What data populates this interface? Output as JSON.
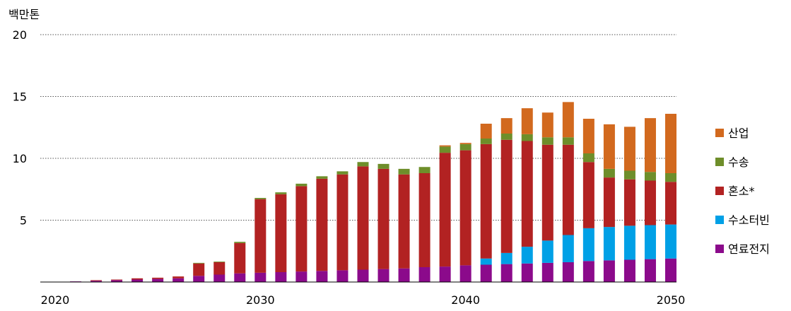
{
  "chart_data": {
    "type": "bar",
    "stacked": true,
    "unit_label": "백만톤",
    "ylim": [
      0,
      20
    ],
    "yticks": [
      5,
      10,
      15,
      20
    ],
    "xticks": [
      2020,
      2030,
      2040,
      2050
    ],
    "grid": true,
    "legend_position": "right",
    "categories": [
      2021,
      2022,
      2023,
      2024,
      2025,
      2026,
      2027,
      2028,
      2029,
      2030,
      2031,
      2032,
      2033,
      2034,
      2035,
      2036,
      2037,
      2038,
      2039,
      2040,
      2041,
      2042,
      2043,
      2044,
      2045,
      2046,
      2047,
      2048,
      2049,
      2050
    ],
    "series": [
      {
        "name": "연료전지",
        "color": "#8b0a8b",
        "values": [
          0.05,
          0.1,
          0.15,
          0.2,
          0.25,
          0.3,
          0.5,
          0.6,
          0.7,
          0.75,
          0.8,
          0.85,
          0.9,
          0.95,
          1.0,
          1.05,
          1.1,
          1.2,
          1.25,
          1.35,
          1.4,
          1.45,
          1.5,
          1.55,
          1.6,
          1.7,
          1.75,
          1.8,
          1.85,
          1.9
        ]
      },
      {
        "name": "수소터빈",
        "color": "#00a0e6",
        "values": [
          0,
          0,
          0,
          0,
          0,
          0,
          0,
          0,
          0,
          0,
          0,
          0,
          0,
          0,
          0,
          0,
          0,
          0,
          0,
          0,
          0.5,
          0.9,
          1.35,
          1.8,
          2.2,
          2.65,
          2.7,
          2.75,
          2.75,
          2.75
        ]
      },
      {
        "name": "혼소*",
        "color": "#b22222",
        "values": [
          0,
          0.05,
          0.05,
          0.1,
          0.1,
          0.15,
          1.0,
          1.0,
          2.45,
          5.95,
          6.3,
          6.9,
          7.45,
          7.75,
          8.35,
          8.1,
          7.6,
          7.6,
          9.2,
          9.3,
          9.25,
          9.15,
          8.55,
          7.75,
          7.3,
          5.35,
          4.0,
          3.75,
          3.6,
          3.45
        ]
      },
      {
        "name": "수송",
        "color": "#6e8e2a",
        "values": [
          0,
          0,
          0,
          0,
          0,
          0,
          0.05,
          0.05,
          0.1,
          0.1,
          0.15,
          0.2,
          0.2,
          0.25,
          0.35,
          0.4,
          0.45,
          0.5,
          0.5,
          0.5,
          0.45,
          0.5,
          0.55,
          0.6,
          0.6,
          0.7,
          0.7,
          0.7,
          0.7,
          0.7
        ]
      },
      {
        "name": "산업",
        "color": "#d2691e",
        "values": [
          0,
          0,
          0,
          0,
          0,
          0,
          0,
          0,
          0,
          0,
          0,
          0,
          0,
          0,
          0,
          0,
          0,
          0,
          0.1,
          0.1,
          1.2,
          1.25,
          2.1,
          2.0,
          2.85,
          2.8,
          3.6,
          3.55,
          4.35,
          4.8
        ]
      }
    ]
  }
}
